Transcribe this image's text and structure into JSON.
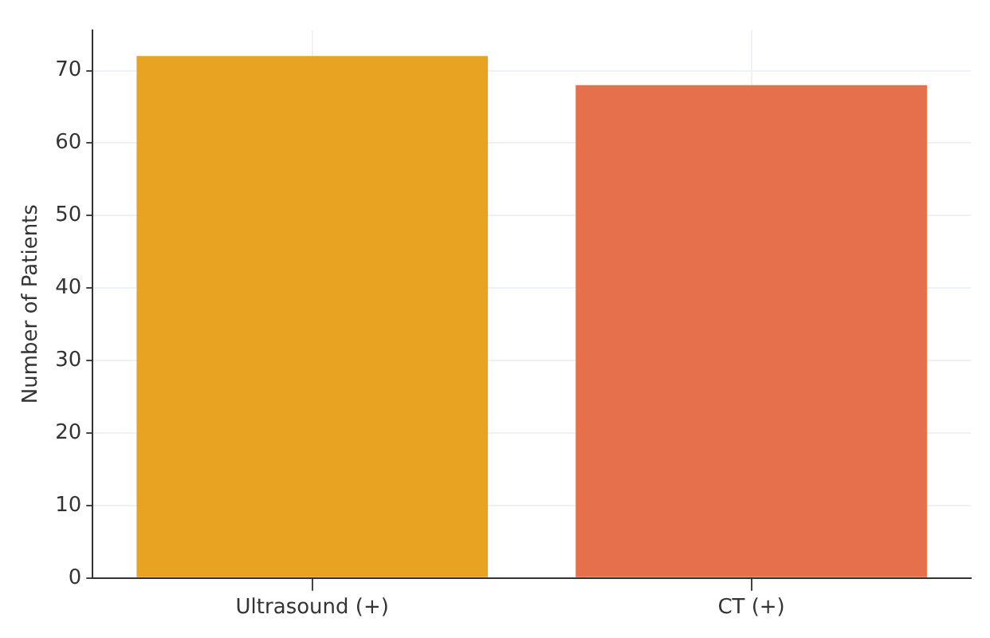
{
  "chart_data": {
    "type": "bar",
    "ylabel": "Number of Patients",
    "categories": [
      "Ultrasound (+)",
      "CT (+)"
    ],
    "values": [
      72,
      68
    ],
    "colors": [
      "#e8a323",
      "#e5704b"
    ],
    "ylim": [
      0,
      75.6
    ],
    "yticks": [
      0,
      10,
      20,
      30,
      40,
      50,
      60,
      70
    ],
    "grid": true
  }
}
